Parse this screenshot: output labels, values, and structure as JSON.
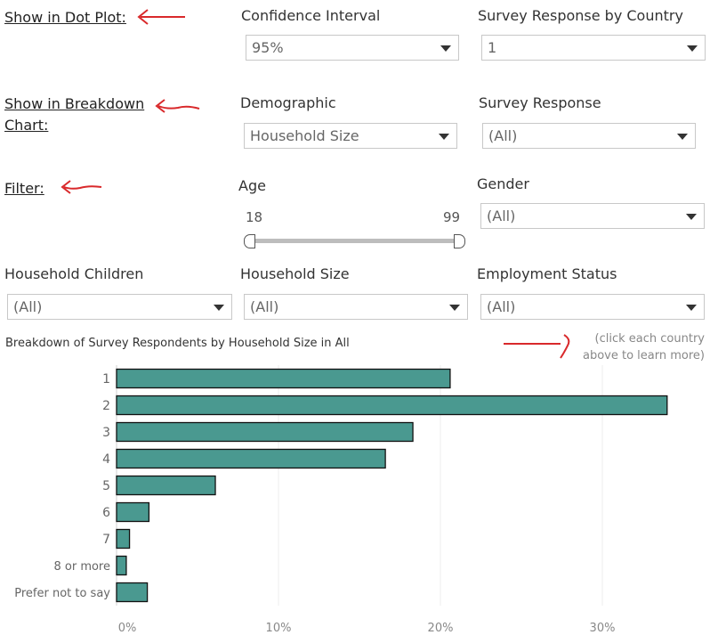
{
  "sections": {
    "dot_plot": "Show in Dot Plot:",
    "breakdown": "Show in Breakdown Chart:",
    "filter": "Filter:"
  },
  "controls": {
    "confidence_interval": {
      "label": "Confidence Interval",
      "value": "95%"
    },
    "survey_response_by_country": {
      "label": "Survey Response by Country",
      "value": "1"
    },
    "demographic": {
      "label": "Demographic",
      "value": "Household Size"
    },
    "survey_response": {
      "label": "Survey Response",
      "value": "(All)"
    },
    "age": {
      "label": "Age",
      "min": "18",
      "max": "99"
    },
    "gender": {
      "label": "Gender",
      "value": "(All)"
    },
    "household_children": {
      "label": "Household Children",
      "value": "(All)"
    },
    "household_size": {
      "label": "Household Size",
      "value": "(All)"
    },
    "employment_status": {
      "label": "Employment Status",
      "value": "(All)"
    }
  },
  "hint": {
    "line1": "(click each country",
    "line2": "above to learn more)"
  },
  "colors": {
    "bar_fill": "#4a9990",
    "annotation_red": "#d9292b"
  },
  "chart_data": {
    "type": "bar",
    "orientation": "horizontal",
    "title": "Breakdown of Survey Respondents by Household Size in All",
    "categories": [
      "1",
      "2",
      "3",
      "4",
      "5",
      "6",
      "7",
      "8 or more",
      "Prefer not to say"
    ],
    "values": [
      20.6,
      34.0,
      18.3,
      16.6,
      6.1,
      2.0,
      0.8,
      0.6,
      1.9
    ],
    "xlim": [
      0,
      35
    ],
    "xticks": [
      0,
      10,
      20,
      30
    ],
    "xtick_labels": [
      "0%",
      "10%",
      "20%",
      "30%"
    ],
    "grid": true
  }
}
